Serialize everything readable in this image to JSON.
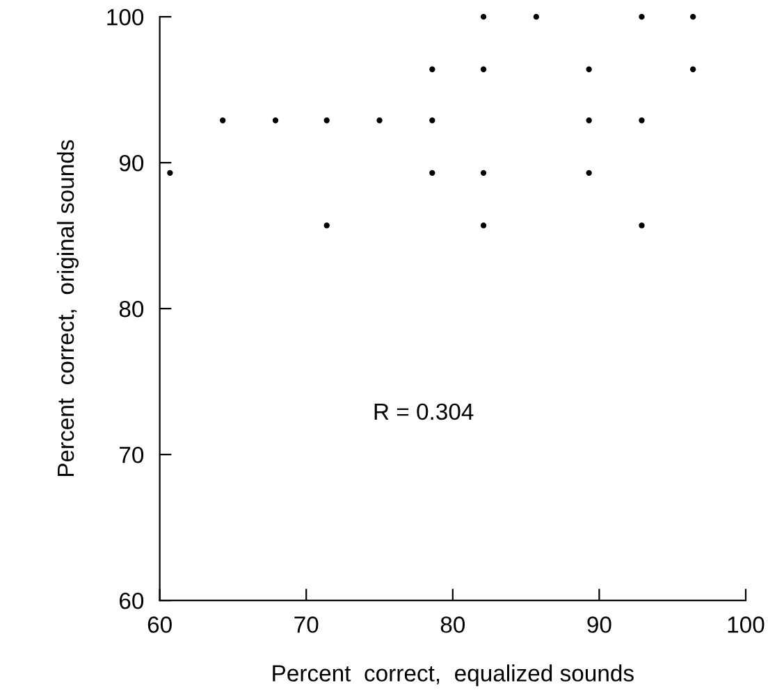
{
  "chart_data": {
    "type": "scatter",
    "xlabel": "Percent  correct,  equalized sounds",
    "ylabel": "Percent  correct,  original sounds",
    "annotations": [
      "R = 0.304"
    ],
    "xlim": [
      60,
      100
    ],
    "ylim": [
      60,
      100
    ],
    "xticks": [
      60,
      70,
      80,
      90,
      100
    ],
    "yticks": [
      60,
      70,
      80,
      90,
      100
    ],
    "grid": false,
    "marker": "circle",
    "series": [
      {
        "color": "#000000",
        "x": [
          82.1,
          85.7,
          92.9,
          96.4,
          78.6,
          82.1,
          89.3,
          96.4,
          64.3,
          67.9,
          71.4,
          75,
          78.6,
          89.3,
          92.9,
          60.7,
          78.6,
          82.1,
          89.3,
          71.4,
          82.1,
          92.9
        ],
        "values": [
          100,
          100,
          100,
          100,
          96.4,
          96.4,
          96.4,
          96.4,
          92.9,
          92.9,
          92.9,
          92.9,
          92.9,
          92.9,
          92.9,
          89.3,
          89.3,
          89.3,
          89.3,
          85.7,
          85.7,
          85.7
        ]
      }
    ]
  }
}
